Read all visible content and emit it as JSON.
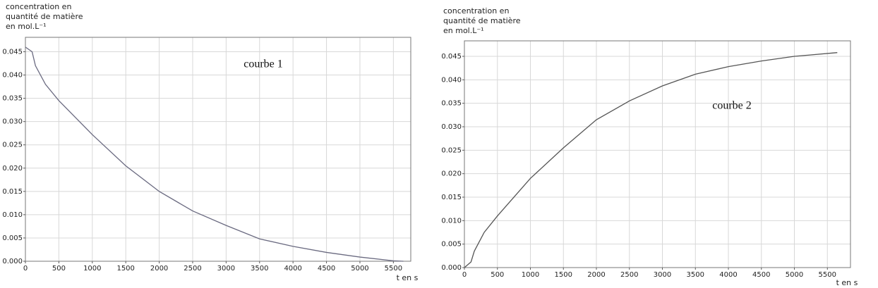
{
  "chart_data": [
    {
      "type": "line",
      "y_label": [
        "concentration en",
        "quantité de matière",
        "en mol.L⁻¹"
      ],
      "x_label": "t en s",
      "annotation": "courbe 1",
      "x": [
        0,
        100,
        150,
        300,
        500,
        1000,
        1500,
        2000,
        2500,
        3000,
        3500,
        4000,
        4500,
        5000,
        5500,
        5650
      ],
      "series": [
        {
          "color": "#6a6a80",
          "values": [
            0.046,
            0.045,
            0.042,
            0.038,
            0.0345,
            0.0272,
            0.0205,
            0.015,
            0.0108,
            0.0077,
            0.0048,
            0.0032,
            0.0019,
            0.0009,
            0.0001,
            0.0
          ]
        }
      ],
      "xlim": [
        0,
        5760
      ],
      "ylim": [
        0,
        0.0481
      ],
      "xticks": [
        0,
        500,
        1000,
        1500,
        2000,
        2500,
        3000,
        3500,
        4000,
        4500,
        5000,
        5500
      ],
      "yticks": [
        {
          "value": 0,
          "label": "0.000"
        },
        {
          "value": 0.005,
          "label": "0.005"
        },
        {
          "value": 0.01,
          "label": "0.010"
        },
        {
          "value": 0.015,
          "label": "0.015"
        },
        {
          "value": 0.02,
          "label": "0.020"
        },
        {
          "value": 0.025,
          "label": "0.025"
        },
        {
          "value": 0.03,
          "label": "0.030"
        },
        {
          "value": 0.035,
          "label": "0.035"
        },
        {
          "value": 0.04,
          "label": "0.040"
        },
        {
          "value": 0.045,
          "label": "0.045"
        }
      ],
      "grid": true
    },
    {
      "type": "line",
      "y_label": [
        "concentration en",
        "quantité de matière",
        "en mol.L⁻¹"
      ],
      "x_label": "t en s",
      "annotation": "courbe 2",
      "x": [
        0,
        100,
        150,
        300,
        500,
        1000,
        1500,
        2000,
        2500,
        3000,
        3500,
        4000,
        4500,
        5000,
        5650
      ],
      "series": [
        {
          "color": "#555555",
          "values": [
            0.0,
            0.0012,
            0.0035,
            0.0075,
            0.011,
            0.019,
            0.0255,
            0.0315,
            0.0355,
            0.0387,
            0.0412,
            0.0428,
            0.044,
            0.045,
            0.0458
          ]
        }
      ],
      "xlim": [
        0,
        5850
      ],
      "ylim": [
        0,
        0.0483
      ],
      "xticks": [
        0,
        500,
        1000,
        1500,
        2000,
        2500,
        3000,
        3500,
        4000,
        4500,
        5000,
        5500
      ],
      "yticks": [
        {
          "value": 0,
          "label": "0.000"
        },
        {
          "value": 0.005,
          "label": "0.005"
        },
        {
          "value": 0.01,
          "label": "0.010"
        },
        {
          "value": 0.015,
          "label": "0.015"
        },
        {
          "value": 0.02,
          "label": "0.020"
        },
        {
          "value": 0.025,
          "label": "0.025"
        },
        {
          "value": 0.03,
          "label": "0.030"
        },
        {
          "value": 0.035,
          "label": "0.035"
        },
        {
          "value": 0.04,
          "label": "0.040"
        },
        {
          "value": 0.045,
          "label": "0.045"
        }
      ],
      "grid": true
    }
  ]
}
